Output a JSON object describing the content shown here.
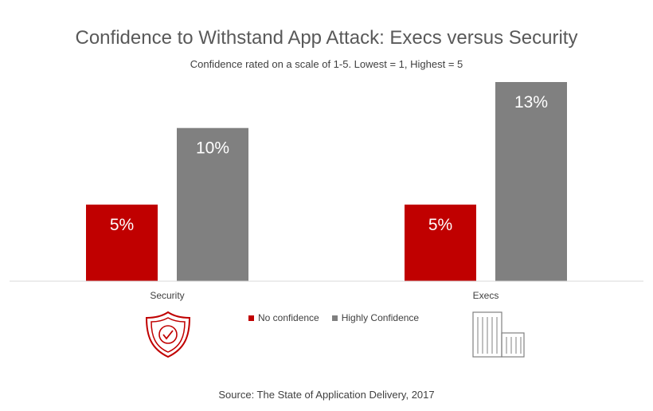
{
  "title": "Confidence to Withstand App Attack: Execs versus Security",
  "subtitle": "Confidence rated on a scale of 1-5. Lowest = 1, Highest = 5",
  "source": "Source: The State of Application Delivery, 2017",
  "colors": {
    "no_confidence": "#c00000",
    "highly_confidence": "#808080",
    "shield_icon": "#c00000",
    "building_icon": "#808080"
  },
  "legend": [
    {
      "label": "No confidence",
      "color": "#c00000"
    },
    {
      "label": "Highly Confidence",
      "color": "#808080"
    }
  ],
  "icons": [
    "shield-check-icon",
    "building-icon"
  ],
  "chart_data": {
    "type": "bar",
    "title": "Confidence to Withstand App Attack: Execs versus Security",
    "subtitle": "Confidence rated on a scale of 1-5. Lowest = 1, Highest = 5",
    "categories": [
      "Security",
      "Execs"
    ],
    "series": [
      {
        "name": "No confidence",
        "values": [
          5,
          5
        ],
        "labels": [
          "5%",
          "5%"
        ]
      },
      {
        "name": "Highly Confidence",
        "values": [
          10,
          13
        ],
        "labels": [
          "10%",
          "13%"
        ]
      }
    ],
    "unit": "%",
    "ylim": [
      0,
      13
    ],
    "grid": false,
    "legend_position": "bottom-center"
  }
}
